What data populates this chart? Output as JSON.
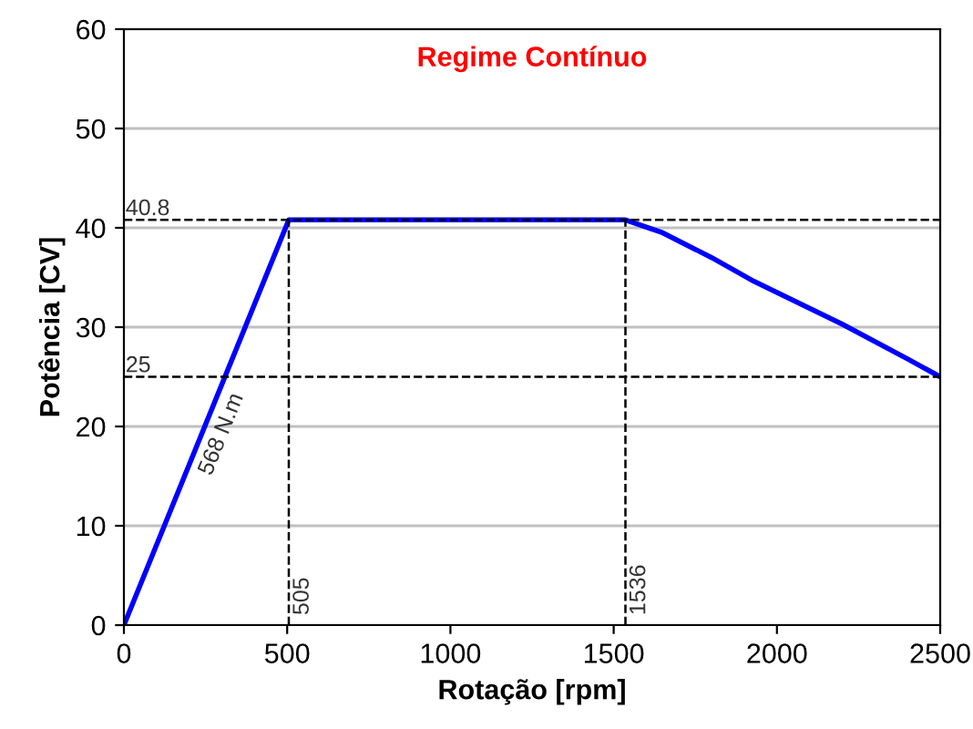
{
  "chart_data": {
    "type": "line",
    "title": "Regime Contínuo",
    "xlabel": "Rotação [rpm]",
    "ylabel": "Potência [CV]",
    "x": [
      0,
      505,
      1536,
      1650,
      1800,
      1930,
      2200,
      2400,
      2500
    ],
    "series": [
      {
        "color": "#0000ff",
        "values": [
          0,
          40.8,
          40.8,
          39.5,
          37,
          34.6,
          30.3,
          26.8,
          25
        ]
      }
    ],
    "xlim": [
      0,
      2500
    ],
    "xticks": [
      0,
      500,
      1000,
      1500,
      2000,
      2500
    ],
    "ylim": [
      0,
      60
    ],
    "yticks": [
      0,
      10,
      20,
      30,
      40,
      50,
      60
    ],
    "grid": "y",
    "marker": "none",
    "line_style": "solid",
    "ref_lines": [
      {
        "axis": "y",
        "value": 40.8,
        "label": "40.8"
      },
      {
        "axis": "y",
        "value": 25,
        "label": "25"
      },
      {
        "axis": "x",
        "value": 505,
        "label": "505"
      },
      {
        "axis": "x",
        "value": 1536,
        "label": "1536"
      }
    ],
    "annotations": [
      "568 N.m"
    ]
  }
}
